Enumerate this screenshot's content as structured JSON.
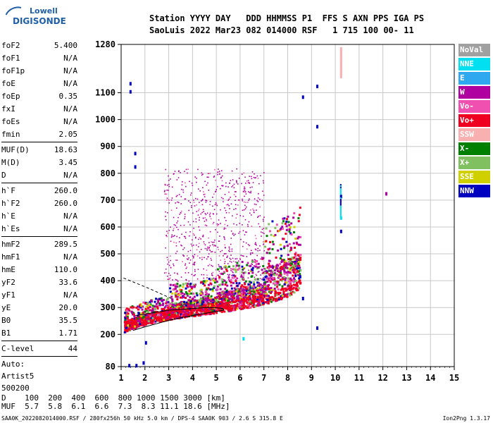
{
  "logo": {
    "line1": "Lowell",
    "line2": "DIGISONDE"
  },
  "header": {
    "line1": "Station YYYY DAY   DDD HHMMSS P1  FFS S AXN PPS IGA PS",
    "line2": "SaoLuis 2022 Mar23 082 014000 RSF   1 715 100 00- 11"
  },
  "params": {
    "g1": [
      [
        "foF2",
        "5.400"
      ],
      [
        "foF1",
        "N/A"
      ],
      [
        "foF1p",
        "N/A"
      ],
      [
        "foE",
        "N/A"
      ],
      [
        "foEp",
        "0.35"
      ],
      [
        "fxI",
        "N/A"
      ],
      [
        "foEs",
        "N/A"
      ],
      [
        "fmin",
        "2.05"
      ]
    ],
    "g2": [
      [
        "MUF(D)",
        "18.63"
      ],
      [
        "M(D)",
        "3.45"
      ],
      [
        "D",
        "N/A"
      ]
    ],
    "g3": [
      [
        "h`F",
        "260.0"
      ],
      [
        "h`F2",
        "260.0"
      ],
      [
        "h`E",
        "N/A"
      ],
      [
        "h`Es",
        "N/A"
      ]
    ],
    "g4": [
      [
        "hmF2",
        "289.5"
      ],
      [
        "hmF1",
        "N/A"
      ],
      [
        "hmE",
        "110.0"
      ],
      [
        "yF2",
        "33.6"
      ],
      [
        "yF1",
        "N/A"
      ],
      [
        "yE",
        "20.0"
      ],
      [
        "B0",
        "35.5"
      ],
      [
        "B1",
        "1.71"
      ]
    ],
    "clevel": [
      "C-level",
      "44"
    ],
    "auto": [
      "Auto:",
      "Artist5",
      "500200"
    ]
  },
  "legend": [
    {
      "label": "NoVal",
      "color": "#a0a0a0"
    },
    {
      "label": "NNE",
      "color": "#00e0f0"
    },
    {
      "label": "E",
      "color": "#30a8f0"
    },
    {
      "label": "W",
      "color": "#b000a0"
    },
    {
      "label": "Vo-",
      "color": "#f050b0"
    },
    {
      "label": "Vo+",
      "color": "#f00020"
    },
    {
      "label": "SSW",
      "color": "#f8b0b0"
    },
    {
      "label": "X-",
      "color": "#008000"
    },
    {
      "label": "X+",
      "color": "#80c060"
    },
    {
      "label": "SSE",
      "color": "#d0d000"
    },
    {
      "label": "NNW",
      "color": "#0000c0"
    }
  ],
  "chart_data": {
    "type": "scatter",
    "xlabel": "",
    "ylabel": "",
    "xlim": [
      1,
      15
    ],
    "ylim": [
      80,
      1280
    ],
    "x_ticks": [
      1,
      2,
      3,
      4,
      5,
      6,
      7,
      8,
      9,
      10,
      11,
      12,
      13,
      14,
      15
    ],
    "y_ticks": [
      80,
      200,
      300,
      400,
      500,
      600,
      700,
      800,
      900,
      1000,
      1100,
      1280
    ],
    "grid": true,
    "profile_trace": {
      "x": [
        1.5,
        2.0,
        2.5,
        3.0,
        3.5,
        4.0,
        4.5,
        5.0,
        5.3
      ],
      "y": [
        215,
        228,
        240,
        252,
        262,
        270,
        278,
        285,
        290
      ]
    },
    "echo_trace": {
      "x": [
        1.1,
        1.5,
        2.0,
        2.5,
        3.0,
        3.5,
        4.0,
        4.5,
        5.0,
        5.5,
        6.0,
        6.5,
        7.0,
        7.5,
        8.0,
        8.5
      ],
      "y": [
        235,
        250,
        265,
        275,
        283,
        290,
        296,
        302,
        308,
        315,
        322,
        330,
        340,
        352,
        370,
        400
      ]
    }
  },
  "bottom": {
    "row1": "D    100  200  400  600  800 1000 1500 3000 [km]",
    "row2": "MUF  5.7  5.8  6.1  6.6  7.3  8.3 11.1 18.6 [MHz]"
  },
  "footer": "SAA0K_2022082014000.RSF / 280fx256h 50 kHz 5.0 km / DPS-4 SAA0K 903 / 2.6 S 315.8 E",
  "version": "Ion2Png 1.3.17"
}
